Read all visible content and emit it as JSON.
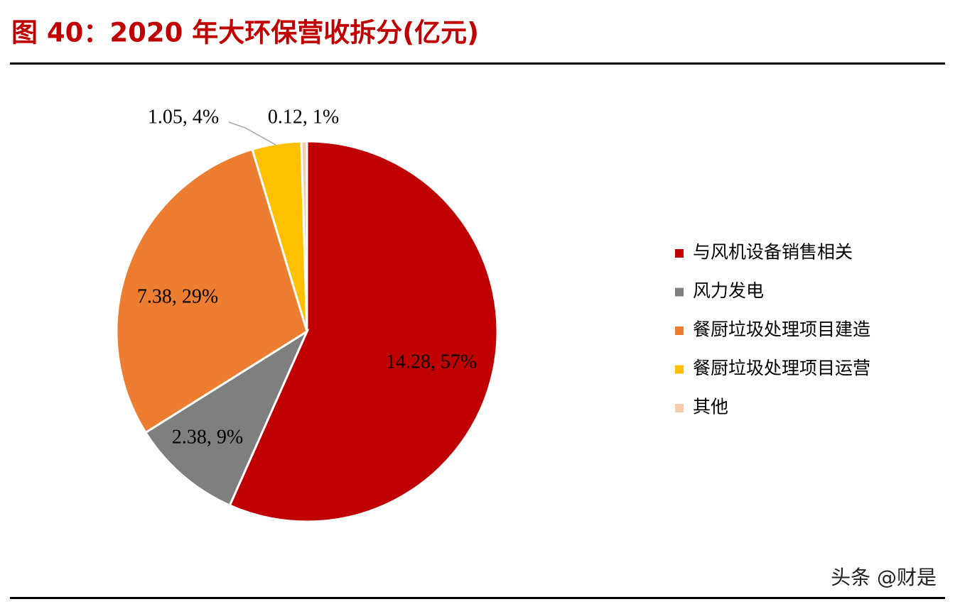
{
  "chart_data": {
    "type": "pie",
    "title": "图 40：2020 年大环保营收拆分(亿元)",
    "categories": [
      "与风机设备销售相关",
      "风力发电",
      "餐厨垃圾处理项目建造",
      "餐厨垃圾处理项目运营",
      "其他"
    ],
    "values": [
      14.28,
      2.38,
      7.38,
      1.05,
      0.12
    ],
    "value_labels": [
      "14.28, 57%",
      "2.38, 9%",
      "7.38, 29%",
      "1.05, 4%",
      "0.12, 1%"
    ],
    "colors": [
      "#c00000",
      "#7f7f7f",
      "#ed7d31",
      "#ffc000",
      "#f8cbad"
    ],
    "legend": "right",
    "watermark": "头条 @财是"
  }
}
